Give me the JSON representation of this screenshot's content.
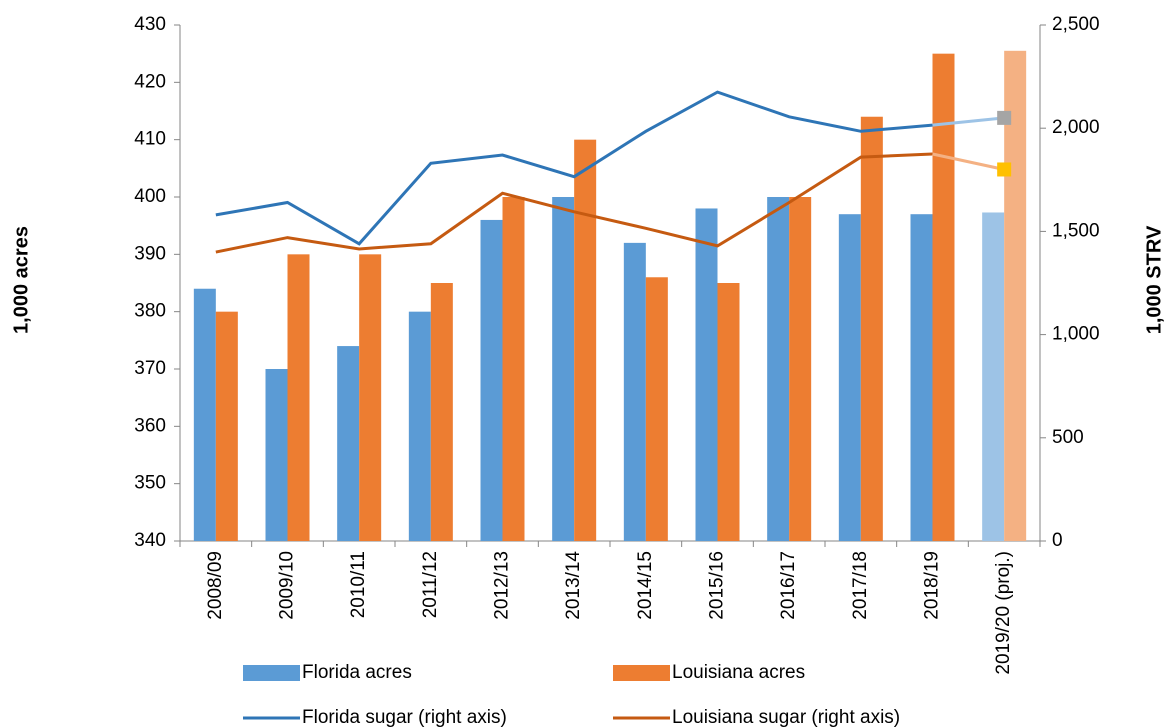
{
  "chart_data": {
    "type": "bar-line",
    "y_label": "1,000 acres",
    "y2_label": "1,000 STRV",
    "categories": [
      "2008/09",
      "2009/10",
      "2010/11",
      "2011/12",
      "2012/13",
      "2013/14",
      "2014/15",
      "2015/16",
      "2016/17",
      "2017/18",
      "2018/19",
      "2019/20 (proj.)"
    ],
    "series": [
      {
        "name": "Florida acres",
        "type": "bar",
        "color": "#5b9bd5",
        "projected_color": "#9dc3e6",
        "values": [
          384,
          370,
          374,
          380,
          396,
          400,
          392,
          398,
          400,
          397,
          397,
          397.3
        ]
      },
      {
        "name": "Louisiana acres",
        "type": "bar",
        "color": "#ed7d31",
        "projected_color": "#f4b183",
        "values": [
          380,
          390,
          390,
          385,
          400,
          410,
          386,
          385,
          400,
          414,
          425,
          425.5
        ]
      },
      {
        "name": "Florida sugar (right axis)",
        "type": "line",
        "axis": "y2",
        "color": "#2e75b6",
        "projected_color": "#9dc3e6",
        "marker_color": "#a5a5a5",
        "values": [
          1580,
          1640,
          1440,
          1830,
          1870,
          1765,
          1985,
          2175,
          2055,
          1985,
          2015,
          2050
        ]
      },
      {
        "name": "Louisiana sugar (right axis)",
        "type": "line",
        "axis": "y2",
        "color": "#c55a11",
        "projected_color": "#f4b183",
        "marker_color": "#ffc000",
        "values": [
          1400,
          1470,
          1415,
          1440,
          1685,
          1595,
          1515,
          1430,
          1640,
          1860,
          1875,
          1800
        ]
      }
    ],
    "ylim": [
      340,
      430
    ],
    "yticks": [
      340,
      350,
      360,
      370,
      380,
      390,
      400,
      410,
      420,
      430
    ],
    "y2lim": [
      0,
      2500
    ],
    "y2ticks": [
      0,
      500,
      {
        "value": 1000,
        "label": "1,000"
      },
      {
        "value": 1500,
        "label": "1,500"
      },
      {
        "value": 2000,
        "label": "2,000"
      },
      {
        "value": 2500,
        "label": "2,500"
      }
    ],
    "grid": false
  }
}
